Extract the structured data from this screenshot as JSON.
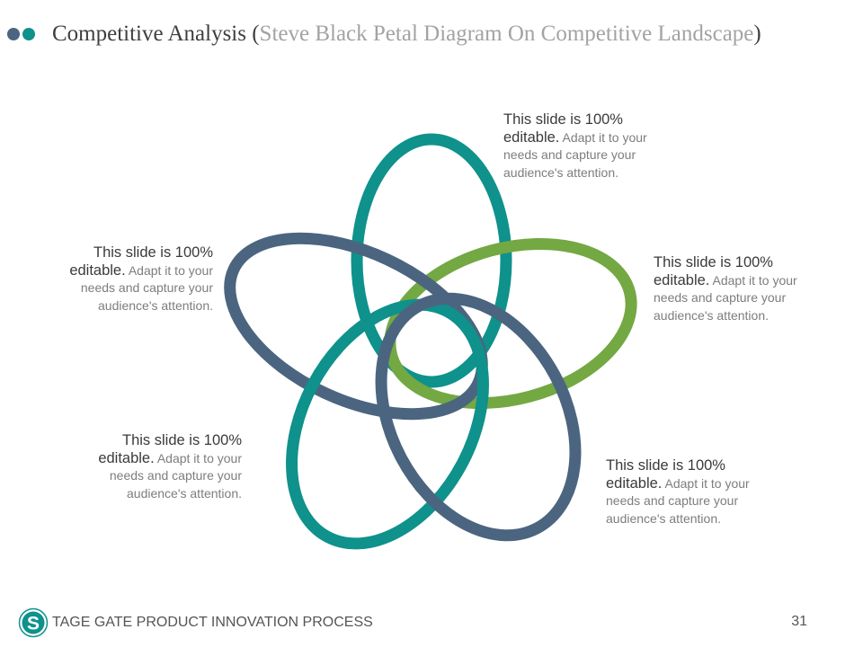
{
  "header": {
    "title_main": "Competitive Analysis",
    "title_sub": "Steve Black Petal Diagram On Competitive Landscape",
    "open_paren": "(",
    "close_paren": ")"
  },
  "petals": [
    {
      "heading": "This slide is 100% editable.",
      "body": " Adapt it to your needs and capture your audience's attention."
    },
    {
      "heading": "This slide is 100% editable.",
      "body": " Adapt it to your needs and capture your audience's attention."
    },
    {
      "heading": "This slide is 100% editable.",
      "body": " Adapt it to your needs and capture your audience's attention."
    },
    {
      "heading": "This slide is 100% editable.",
      "body": " Adapt it to your needs and capture your audience's attention."
    },
    {
      "heading": "This slide is 100% editable.",
      "body": " Adapt it to your needs and capture your audience's attention."
    }
  ],
  "colors": {
    "teal": "#0f918c",
    "green": "#73a843",
    "slate": "#4b6580"
  },
  "footer": {
    "logo_letter": "S",
    "text": "TAGE GATE PRODUCT INNOVATION PROCESS",
    "page_number": "31"
  }
}
